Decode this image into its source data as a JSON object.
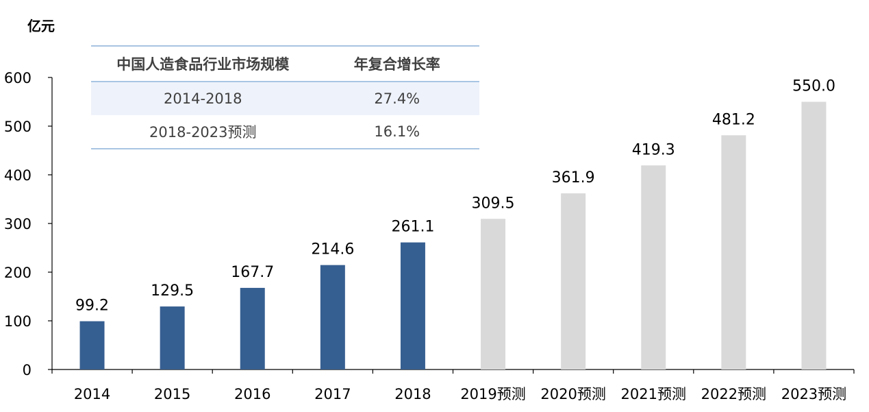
{
  "unit_label": "亿元",
  "table": {
    "headers": [
      "中国人造食品行业市场规模",
      "年复合增长率"
    ],
    "rows": [
      [
        "2014-2018",
        "27.4%"
      ],
      [
        "2018-2023预测",
        "16.1%"
      ]
    ]
  },
  "colors": {
    "actual": "#365f91",
    "forecast": "#d9d9d9",
    "table_line": "#a8c4e2",
    "table_band": "#eef2fa"
  },
  "chart_data": {
    "type": "bar",
    "categories": [
      "2014",
      "2015",
      "2016",
      "2017",
      "2018",
      "2019预测",
      "2020预测",
      "2021预测",
      "2022预测",
      "2023预测"
    ],
    "values": [
      99.2,
      129.5,
      167.7,
      214.6,
      261.1,
      309.5,
      361.9,
      419.3,
      481.2,
      550.0
    ],
    "data_labels": [
      "99.2",
      "129.5",
      "167.7",
      "214.6",
      "261.1",
      "309.5",
      "361.9",
      "419.3",
      "481.2",
      "550.0"
    ],
    "kind": [
      "actual",
      "actual",
      "actual",
      "actual",
      "actual",
      "forecast",
      "forecast",
      "forecast",
      "forecast",
      "forecast"
    ],
    "yticks": [
      0,
      100,
      200,
      300,
      400,
      500,
      600
    ],
    "ylim": [
      0,
      600
    ],
    "ylabel": "亿元",
    "xlabel": "",
    "grid": false,
    "legend": "none"
  }
}
